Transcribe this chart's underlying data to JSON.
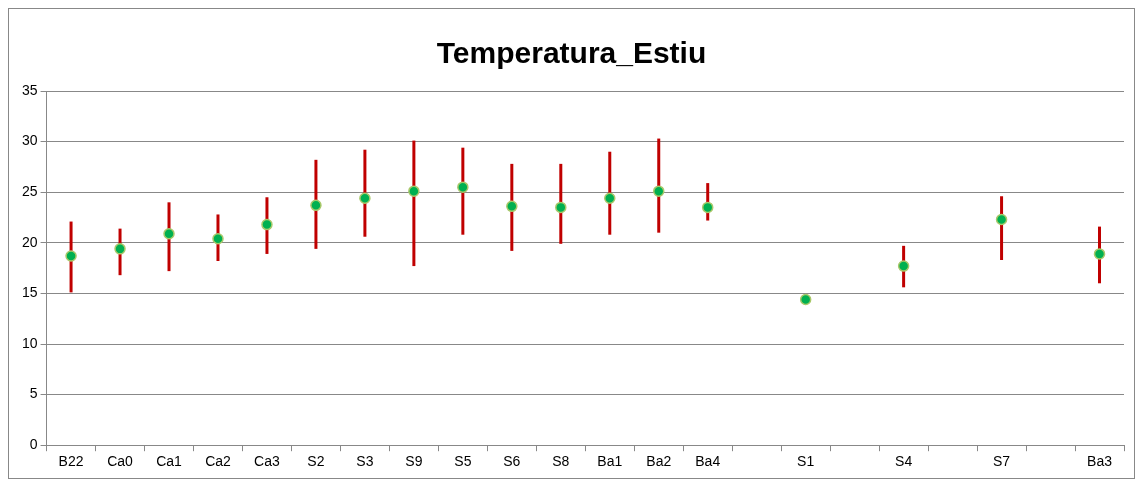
{
  "chart_data": {
    "type": "scatter",
    "title": "Temperatura_Estiu",
    "categories": [
      "B22",
      "Ca0",
      "Ca1",
      "Ca2",
      "Ca3",
      "S2",
      "S3",
      "S9",
      "S5",
      "S6",
      "S8",
      "Ba1",
      "Ba2",
      "Ba4",
      null,
      "S1",
      null,
      "S4",
      null,
      "S7",
      null,
      "Ba3"
    ],
    "values": [
      18.7,
      19.4,
      20.9,
      20.4,
      21.8,
      23.7,
      24.4,
      25.1,
      25.5,
      23.6,
      23.5,
      24.4,
      25.1,
      23.5,
      null,
      14.4,
      null,
      17.7,
      null,
      22.3,
      null,
      18.9
    ],
    "errors": [
      [
        15.1,
        22.1
      ],
      [
        16.8,
        21.4
      ],
      [
        17.2,
        24.0
      ],
      [
        18.2,
        22.8
      ],
      [
        18.9,
        24.5
      ],
      [
        19.4,
        28.2
      ],
      [
        20.6,
        29.2
      ],
      [
        17.7,
        30.1
      ],
      [
        20.8,
        29.4
      ],
      [
        19.2,
        27.8
      ],
      [
        19.9,
        27.8
      ],
      [
        20.8,
        29.0
      ],
      [
        21.0,
        30.3
      ],
      [
        22.2,
        25.9
      ],
      null,
      null,
      null,
      [
        15.6,
        19.7
      ],
      null,
      [
        18.3,
        24.6
      ],
      null,
      [
        16.0,
        21.6
      ]
    ],
    "color": "#00b050",
    "ylim": [
      0,
      35
    ],
    "yticks": [
      0,
      5,
      10,
      15,
      20,
      25,
      30,
      35
    ],
    "grid": "y",
    "legend": false,
    "marker": "circle"
  }
}
